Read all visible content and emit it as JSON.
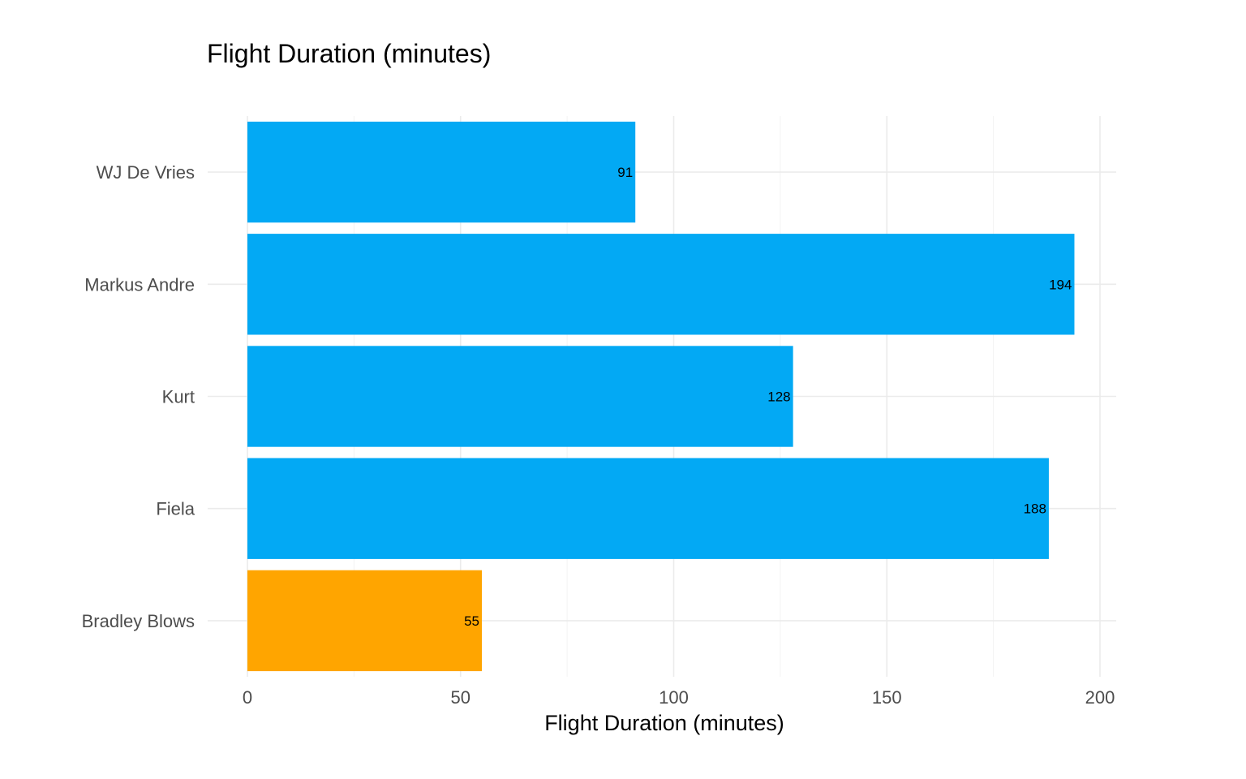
{
  "chart_data": {
    "type": "bar",
    "orientation": "horizontal",
    "title": "Flight Duration (minutes)",
    "xlabel": "Flight Duration (minutes)",
    "ylabel": "",
    "categories": [
      "WJ De Vries",
      "Markus Andre",
      "Kurt",
      "Fiela",
      "Bradley Blows"
    ],
    "values": [
      91,
      194,
      128,
      188,
      55
    ],
    "bar_colors": [
      "#03a9f4",
      "#03a9f4",
      "#03a9f4",
      "#03a9f4",
      "#ffa500"
    ],
    "data_labels": [
      "91",
      "194",
      "128",
      "188",
      "55"
    ],
    "xlim": [
      0,
      203
    ],
    "x_ticks": [
      0,
      50,
      100,
      150,
      200
    ],
    "x_tick_labels": [
      "0",
      "50",
      "100",
      "150",
      "200"
    ],
    "grid": true,
    "legend": "none"
  }
}
